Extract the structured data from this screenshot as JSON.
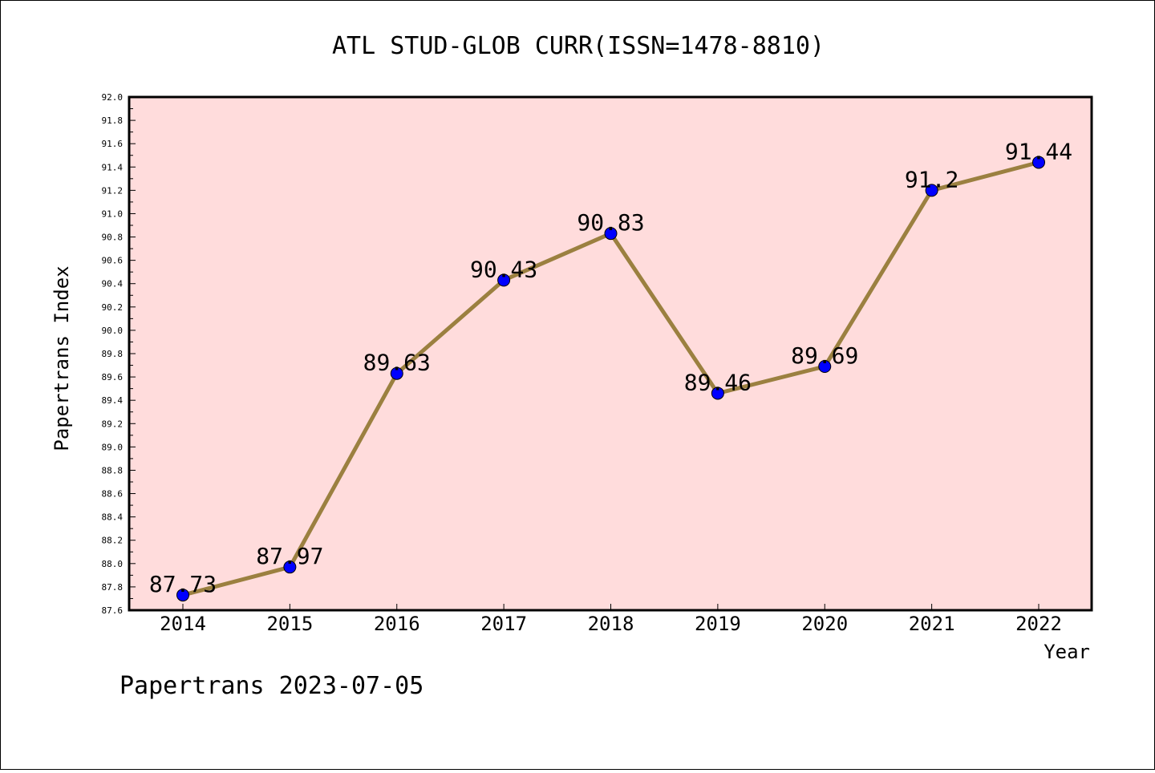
{
  "chart_data": {
    "type": "line",
    "title": "ATL STUD-GLOB CURR(ISSN=1478-8810)",
    "xlabel": "Year",
    "ylabel": "Papertrans Index",
    "x": [
      "2014",
      "2015",
      "2016",
      "2017",
      "2018",
      "2019",
      "2020",
      "2021",
      "2022"
    ],
    "series": [
      {
        "values": [
          87.73,
          87.97,
          89.63,
          90.43,
          90.83,
          89.46,
          89.69,
          91.2,
          91.44
        ],
        "labels": [
          "87.73",
          "87.97",
          "89.63",
          "90.43",
          "90.83",
          "89.46",
          "89.69",
          "91.2",
          "91.44"
        ],
        "line_color": "#9b8040",
        "marker_color": "#0000ff"
      }
    ],
    "ylim": [
      87.6,
      92.0
    ],
    "yticks": [
      "87.6",
      "87.8",
      "88.0",
      "88.2",
      "88.4",
      "88.6",
      "88.8",
      "89.0",
      "89.2",
      "89.4",
      "89.6",
      "89.8",
      "90.0",
      "90.2",
      "90.4",
      "90.6",
      "90.8",
      "91.0",
      "91.2",
      "91.4",
      "91.6",
      "91.8",
      "92.0"
    ],
    "grid": false,
    "legend": "none",
    "plot_background": "#ffdcdc"
  },
  "footer": {
    "text": "Papertrans 2023-07-05"
  }
}
